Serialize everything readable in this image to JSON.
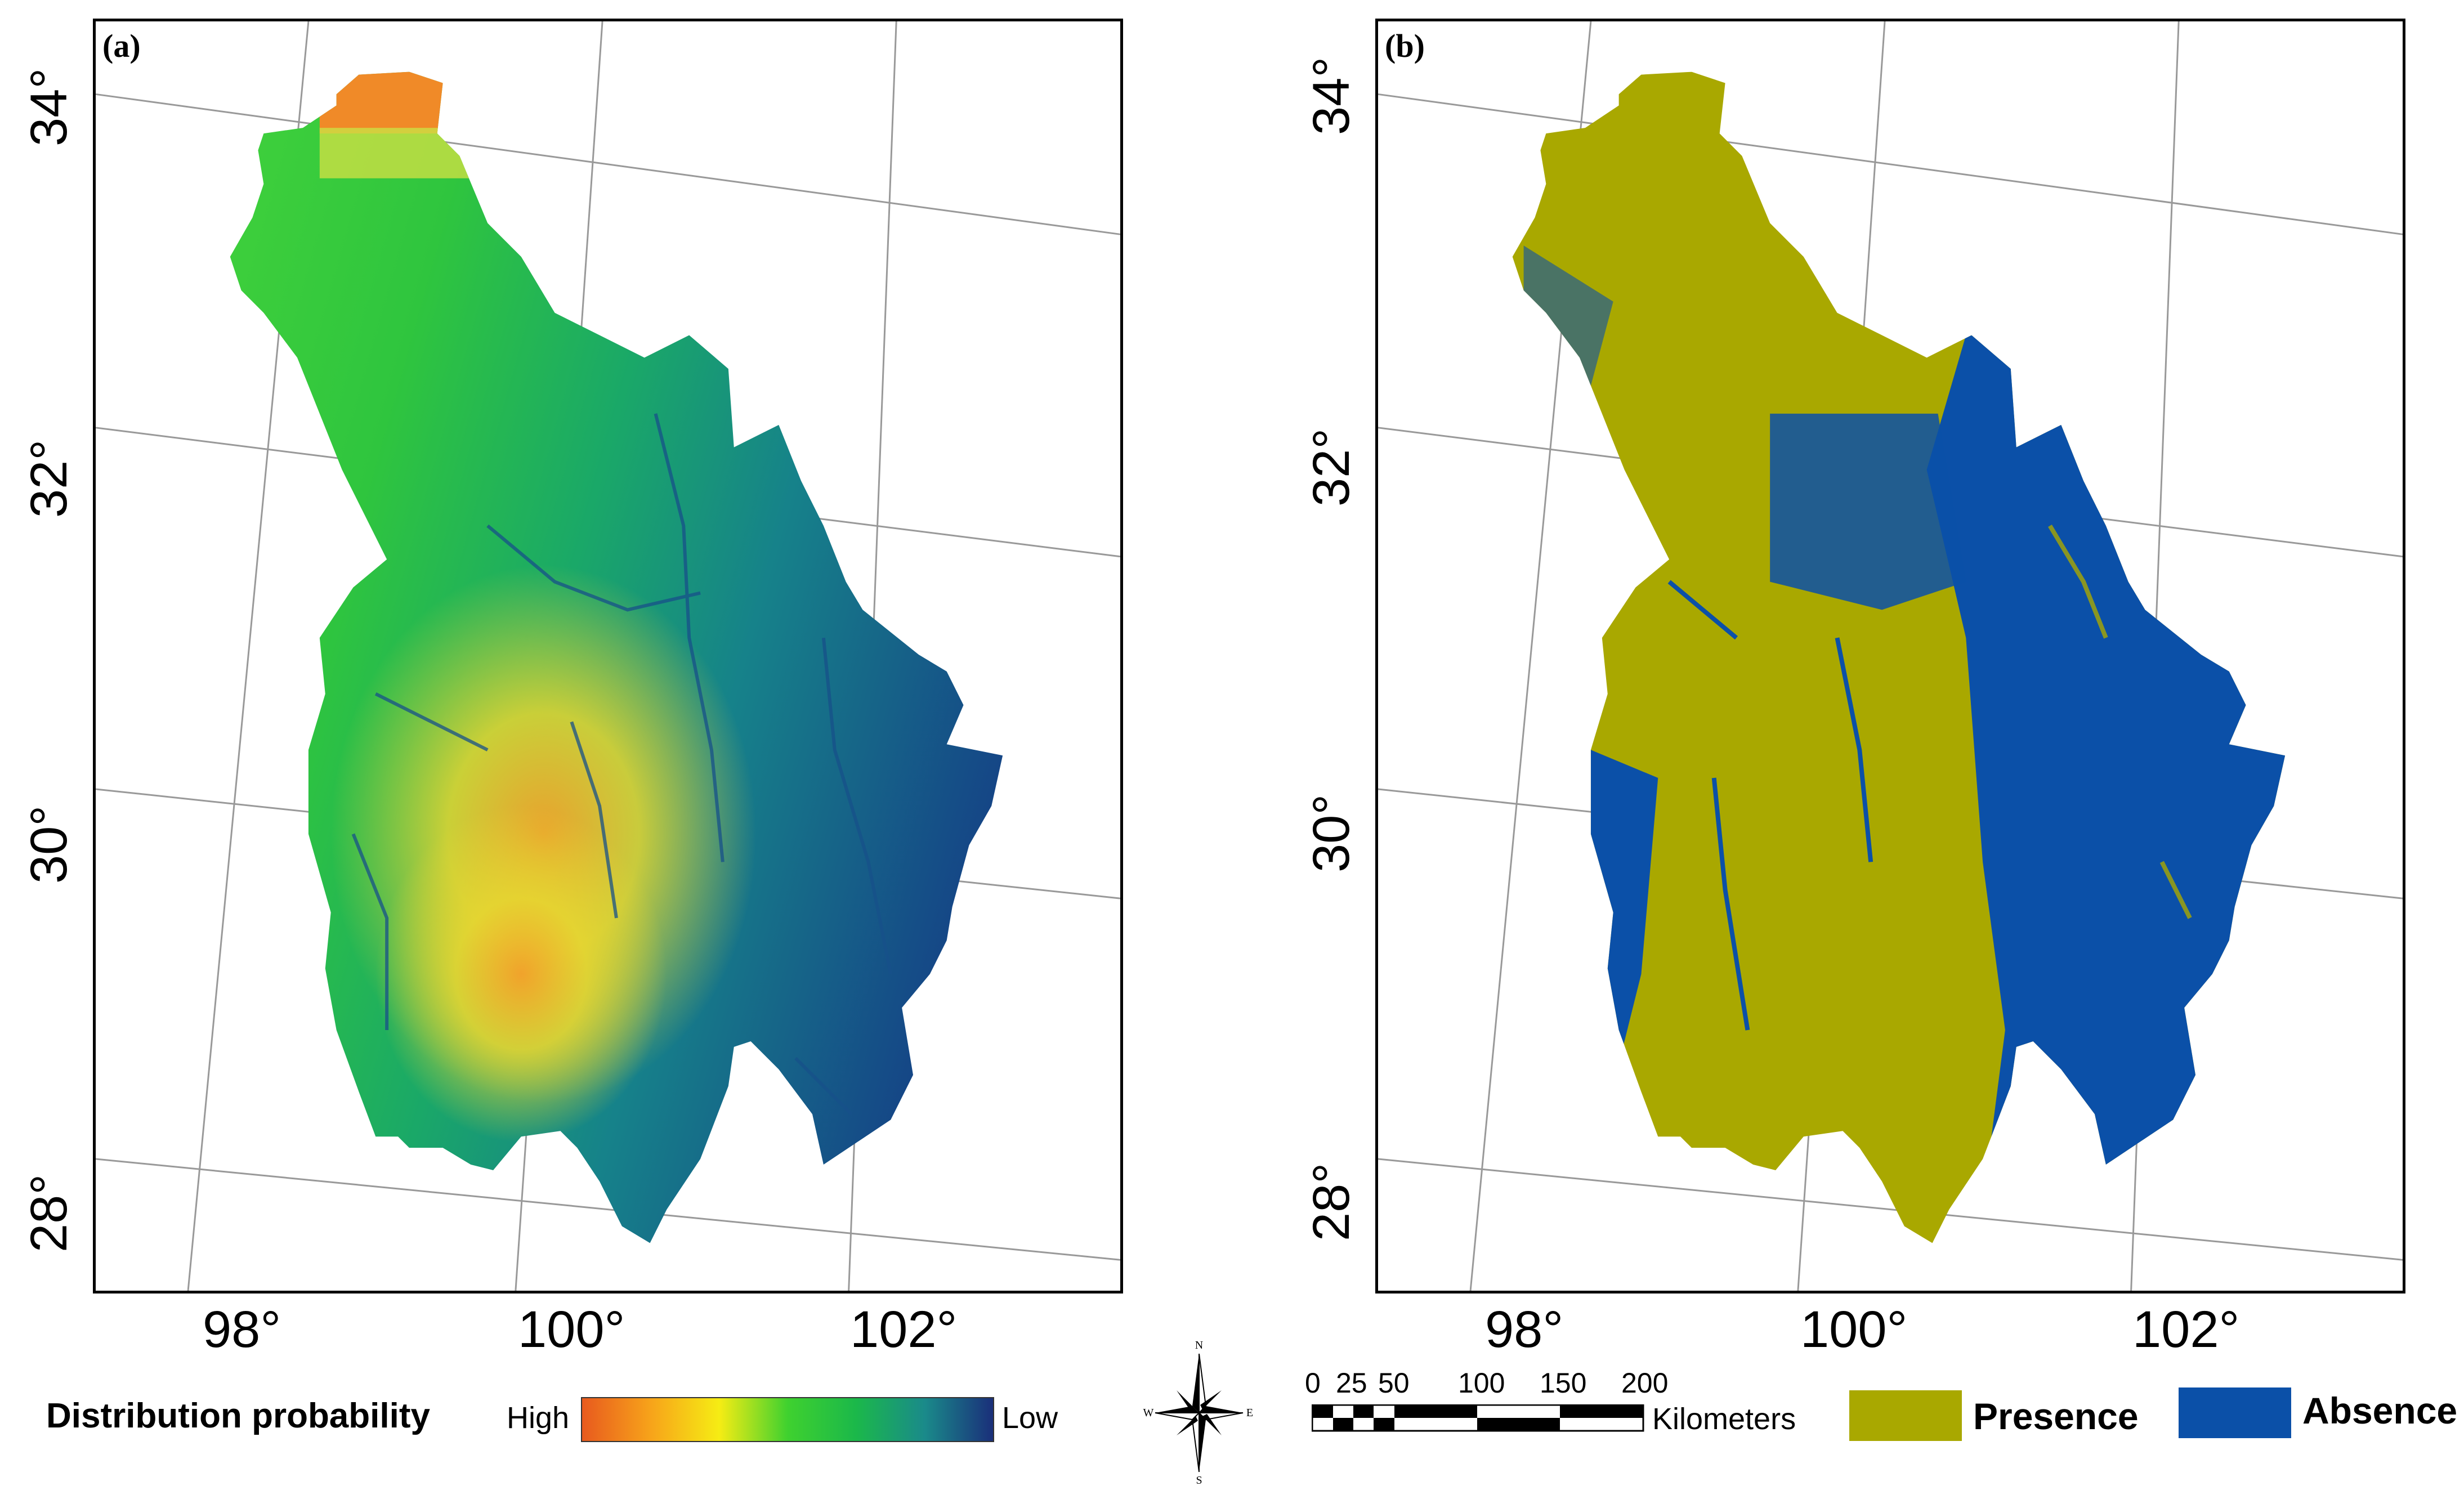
{
  "colors": {
    "presence": "#a9a800",
    "absence": "#0b50a8",
    "ramp": [
      "#e85a1e",
      "#f7a31a",
      "#f6ec14",
      "#3fd12f",
      "#1bb84a",
      "#1a8a8a",
      "#1a2f7a"
    ]
  },
  "panel_a": {
    "label": "(a)",
    "lat_ticks": [
      "34°",
      "32°",
      "30°",
      "28°"
    ],
    "lon_ticks": [
      "98°",
      "100°",
      "102°"
    ]
  },
  "panel_b": {
    "label": "(b)",
    "lat_ticks": [
      "34°",
      "32°",
      "30°",
      "28°"
    ],
    "lon_ticks": [
      "98°",
      "100°",
      "102°"
    ]
  },
  "legend_a": {
    "title": "Distribution probability",
    "high": "High",
    "low": "Low"
  },
  "compass": {
    "n": "N",
    "s": "S",
    "e": "E",
    "w": "W",
    "icon": "north-arrow-compass-rose"
  },
  "scale": {
    "ticks": [
      "0",
      "25",
      "50",
      "100",
      "150",
      "200"
    ],
    "unit": "Kilometers"
  },
  "legend_b": {
    "presence": "Presence",
    "absence": "Absence"
  }
}
